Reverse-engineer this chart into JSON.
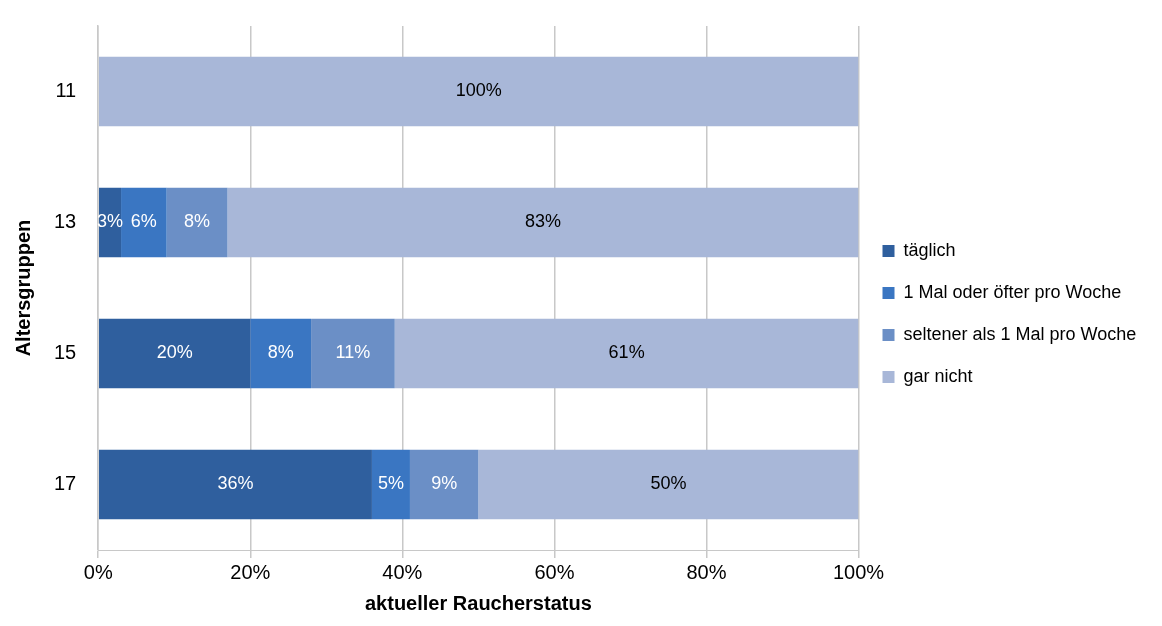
{
  "chart_data": {
    "type": "bar",
    "orientation": "horizontal",
    "stacked": true,
    "xlabel": "aktueller Raucherstatus",
    "ylabel": "Altersgruppen",
    "categories": [
      "11",
      "13",
      "15",
      "17"
    ],
    "series": [
      {
        "name": "täglich",
        "color": "#2f5f9e",
        "values": [
          0,
          3,
          20,
          36
        ],
        "value_labels": [
          null,
          "3%",
          "20%",
          "36%"
        ]
      },
      {
        "name": "1 Mal oder öfter pro Woche",
        "color": "#3a76c2",
        "values": [
          0,
          6,
          8,
          5
        ],
        "value_labels": [
          null,
          "6%",
          "8%",
          "5%"
        ]
      },
      {
        "name": "seltener als 1 Mal pro Woche",
        "color": "#6b8fc6",
        "values": [
          0,
          8,
          11,
          9
        ],
        "value_labels": [
          null,
          "8%",
          "11%",
          "9%"
        ]
      },
      {
        "name": "gar nicht",
        "color": "#a8b7d8",
        "values": [
          100,
          83,
          61,
          50
        ],
        "value_labels": [
          "100%",
          "83%",
          "61%",
          "50%"
        ]
      }
    ],
    "xlim": [
      0,
      100
    ],
    "xticks": [
      {
        "value": 0,
        "label": "0%"
      },
      {
        "value": 20,
        "label": "20%"
      },
      {
        "value": 40,
        "label": "40%"
      },
      {
        "value": 60,
        "label": "60%"
      },
      {
        "value": 80,
        "label": "80%"
      },
      {
        "value": 100,
        "label": "100%"
      }
    ],
    "grid": "x",
    "legend": "right"
  }
}
